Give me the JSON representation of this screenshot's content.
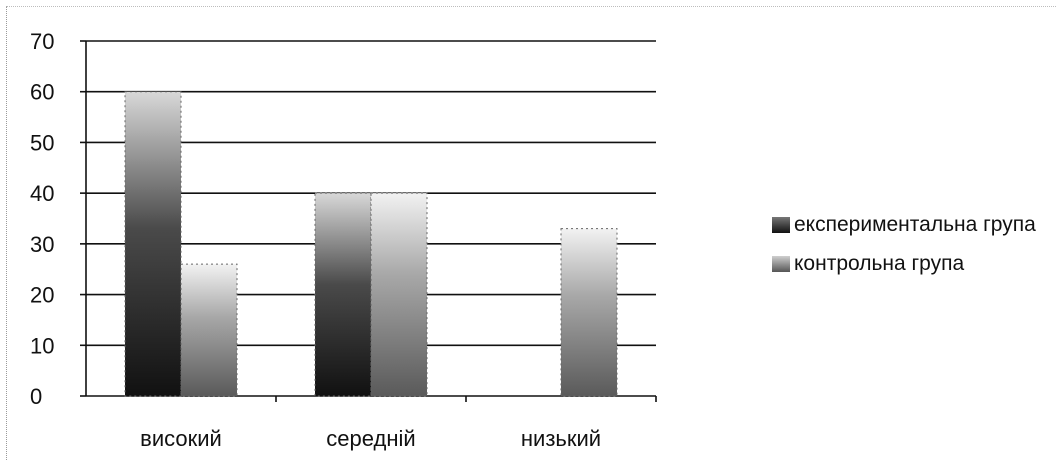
{
  "chart_data": {
    "type": "bar",
    "categories": [
      "високий",
      "середній",
      "низький"
    ],
    "series": [
      {
        "name": "експериментальна група",
        "values": [
          60,
          40,
          0
        ],
        "color": "#2e2e2e"
      },
      {
        "name": "контрольна група",
        "values": [
          26,
          40,
          33
        ],
        "color": "#8a8a8a"
      }
    ],
    "ylim": [
      0,
      70
    ],
    "yticks": [
      0,
      10,
      20,
      30,
      40,
      50,
      60,
      70
    ],
    "grid": true,
    "legend_position": "right",
    "title": "",
    "xlabel": "",
    "ylabel": ""
  }
}
